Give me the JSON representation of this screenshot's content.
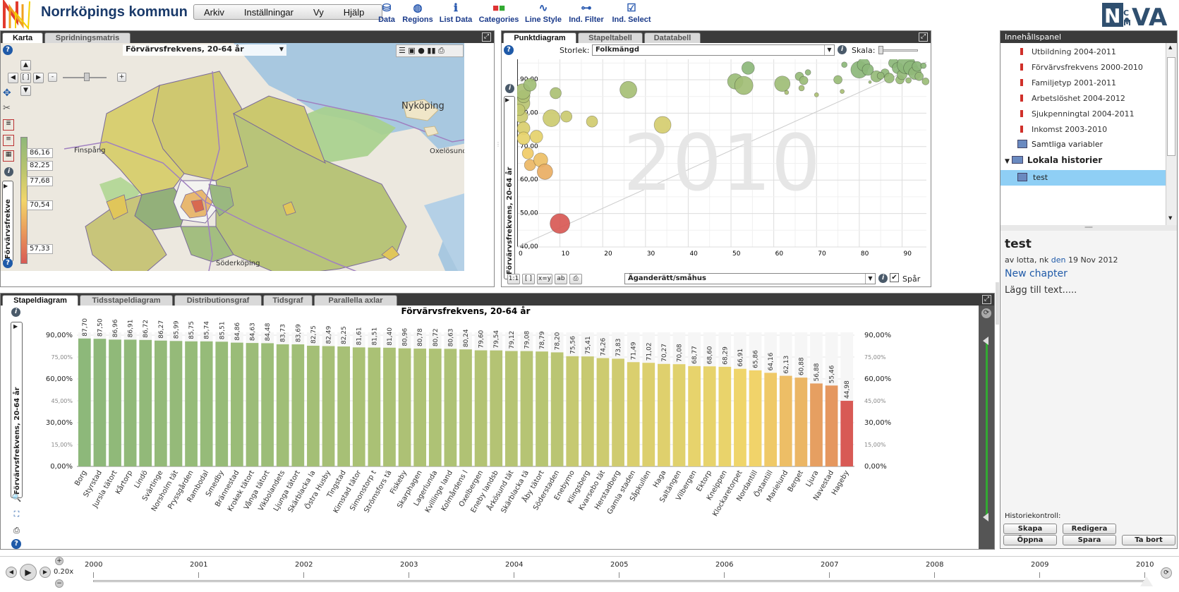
{
  "app": {
    "title": "Norrköpings kommun",
    "menu": [
      "Arkiv",
      "Inställningar",
      "Vy",
      "Hjälp"
    ],
    "toolbar": [
      {
        "label": "Data",
        "icon": "database-icon"
      },
      {
        "label": "Regions",
        "icon": "globe-icon"
      },
      {
        "label": "List Data",
        "icon": "info-icon"
      },
      {
        "label": "Categories",
        "icon": "categories-icon"
      },
      {
        "label": "Line Style",
        "icon": "line-style-icon"
      },
      {
        "label": "Ind. Filter",
        "icon": "filter-icon"
      },
      {
        "label": "Ind. Select",
        "icon": "checkbox-icon"
      }
    ]
  },
  "map_panel": {
    "tabs": [
      "Karta",
      "Spridningsmatris"
    ],
    "indicator": "Förvärvsfrekvens, 20-64 år",
    "side_label": "Förvärvsfrekve",
    "legend": [
      "86,16",
      "82,25",
      "77,68",
      "70,54",
      "57,33"
    ],
    "places": [
      "Nyköping",
      "Finspång",
      "Oxelösund",
      "Söderköping"
    ],
    "zoom_minus": "-",
    "zoom_plus": "+"
  },
  "scatter_panel": {
    "tabs": [
      "Punktdiagram",
      "Stapeltabell",
      "Datatabell"
    ],
    "size_label": "Storlek:",
    "size_value": "Folkmängd",
    "scale_label": "Skala:",
    "year_watermark": "2010",
    "y_label": "Förvärvsfrekvens, 20-64 år",
    "x_axis_value": "Äganderätt/småhus",
    "trace_label": "Spår",
    "bottom_buttons": [
      "1:1",
      "[ ]",
      "x=y",
      "ab"
    ]
  },
  "bar_panel": {
    "tabs": [
      "Stapeldiagram",
      "Tidsstapeldiagram",
      "Distributionsgraf",
      "Tidsgraf",
      "Parallella axlar"
    ],
    "side_label": "Förvärvsfrekvens, 20-64 år"
  },
  "content_panel": {
    "title": "Innehållspanel",
    "items": [
      "Utbildning 2004-2011",
      "Förvärvsfrekvens 2000-2010",
      "Familjetyp 2001-2011",
      "Arbetslöshet 2004-2012",
      "Sjukpenningtal 2004-2011",
      "Inkomst 2003-2010"
    ],
    "all_variables": "Samtliga variabler",
    "local_histories": "Lokala historier",
    "selected_story": "test",
    "story_title": "test",
    "story_meta_prefix": "av lotta, nk",
    "story_meta_den": "den",
    "story_meta_date": "19 Nov 2012",
    "new_chapter": "New chapter",
    "add_text": "Lägg till text.....",
    "history_control": "Historiekontroll:",
    "buttons": [
      "Skapa",
      "Redigera",
      "Öppna",
      "Spara",
      "Ta bort"
    ]
  },
  "timeline": {
    "speed": "0.20x",
    "years": [
      "2000",
      "2001",
      "2002",
      "2003",
      "2004",
      "2005",
      "2006",
      "2007",
      "2008",
      "2009",
      "2010"
    ],
    "current": 2010
  },
  "chart_data": [
    {
      "type": "bar",
      "title": "Förvärvsfrekvens, 20-64 år",
      "ylim": [
        0,
        90
      ],
      "yticks": [
        "0,00%",
        "15,00%",
        "30,00%",
        "45,00%",
        "60,00%",
        "75,00%",
        "90,00%"
      ],
      "categories": [
        "Borg",
        "Styrstad",
        "Jursla tätort",
        "Kårtorp",
        "Lindö",
        "Svärtinge",
        "Norsholm tät",
        "Pryssgården",
        "Rambodal",
        "Smedby",
        "Brännestad",
        "Krokek tätort",
        "Vånga tätort",
        "Vikbolandets",
        "Ljunga tätort",
        "Skärblacka la",
        "Östra Husby",
        "Tingstad",
        "Kimstad tätor",
        "Simonstorp t",
        "Strömsfors tä",
        "Fiskeby",
        "Skarphagen",
        "Lagerlunda",
        "Kvillinge land",
        "Kolmårdens l",
        "Oxelbergen",
        "Eneby landsb",
        "Årkösund tät",
        "Skärblacka tä",
        "Åby tätort",
        "Söderstaden",
        "Enebymo",
        "Klingsberg",
        "Kvarsebo tät",
        "Herstadberg",
        "Gamla staden",
        "Såpkullen",
        "Haga",
        "Saltängen",
        "Vilbergen",
        "Ektorp",
        "Kneippen",
        "Klockaretorpet",
        "Nordantill",
        "Östantill",
        "Marielund",
        "Berget",
        "Ljura",
        "Navestad",
        "Hageby"
      ],
      "values": [
        87.7,
        87.5,
        86.96,
        86.91,
        86.72,
        86.27,
        85.99,
        85.75,
        85.74,
        85.51,
        84.86,
        84.63,
        84.48,
        83.73,
        83.69,
        82.75,
        82.49,
        82.25,
        81.61,
        81.51,
        81.4,
        80.96,
        80.78,
        80.72,
        80.63,
        80.24,
        79.6,
        79.54,
        79.12,
        79.08,
        78.79,
        78.2,
        75.56,
        75.41,
        74.26,
        73.83,
        71.49,
        71.02,
        70.27,
        70.08,
        68.77,
        68.6,
        68.29,
        66.91,
        65.86,
        64.16,
        62.13,
        60.88,
        56.88,
        55.46,
        44.98
      ],
      "labels": [
        "87,70",
        "87,50",
        "86,96",
        "86,91",
        "86,72",
        "86,27",
        "85,99",
        "85,75",
        "85,74",
        "85,51",
        "84,86",
        "84,63",
        "84,48",
        "83,73",
        "83,69",
        "82,75",
        "82,49",
        "82,25",
        "81,61",
        "81,51",
        "81,40",
        "80,96",
        "80,78",
        "80,72",
        "80,63",
        "80,24",
        "79,60",
        "79,54",
        "79,12",
        "79,08",
        "78,79",
        "78,20",
        "75,56",
        "75,41",
        "74,26",
        "73,83",
        "71,49",
        "71,02",
        "70,27",
        "70,08",
        "68,77",
        "68,60",
        "68,29",
        "66,91",
        "65,86",
        "64,16",
        "62,13",
        "60,88",
        "56,88",
        "55,46",
        "44,98"
      ]
    },
    {
      "type": "scatter",
      "xlabel": "Äganderätt/småhus",
      "ylabel": "Förvärvsfrekvens, 20-64 år",
      "xlim": [
        0,
        100
      ],
      "ylim": [
        40,
        95
      ],
      "xticks": [
        "0",
        "10",
        "20",
        "30",
        "40",
        "50",
        "60",
        "70",
        "80",
        "90"
      ],
      "yticks": [
        "40,00",
        "50,00",
        "60,00",
        "70,00",
        "80,00",
        "90,00"
      ],
      "points": [
        {
          "x": 1,
          "y": 83,
          "s": 12
        },
        {
          "x": 1,
          "y": 79,
          "s": 9
        },
        {
          "x": 1.5,
          "y": 75.5,
          "s": 9
        },
        {
          "x": 1.5,
          "y": 72.5,
          "s": 9
        },
        {
          "x": 2.5,
          "y": 68,
          "s": 8
        },
        {
          "x": 3,
          "y": 64.5,
          "s": 8
        },
        {
          "x": 5.5,
          "y": 66,
          "s": 10
        },
        {
          "x": 4.5,
          "y": 73,
          "s": 9
        },
        {
          "x": 1.5,
          "y": 85,
          "s": 9
        },
        {
          "x": 1.3,
          "y": 86.5,
          "s": 11
        },
        {
          "x": 3,
          "y": 88.5,
          "s": 9
        },
        {
          "x": 0.5,
          "y": 81,
          "s": 8
        },
        {
          "x": 8,
          "y": 78.5,
          "s": 12
        },
        {
          "x": 9,
          "y": 86,
          "s": 8
        },
        {
          "x": 11.5,
          "y": 79,
          "s": 8
        },
        {
          "x": 17.5,
          "y": 77.5,
          "s": 8
        },
        {
          "x": 26,
          "y": 87,
          "s": 12
        },
        {
          "x": 34,
          "y": 76.5,
          "s": 12
        },
        {
          "x": 6.5,
          "y": 62.5,
          "s": 11
        },
        {
          "x": 10,
          "y": 47,
          "s": 14
        },
        {
          "x": 51,
          "y": 89.5,
          "s": 11
        },
        {
          "x": 53,
          "y": 88.3,
          "s": 13
        },
        {
          "x": 54,
          "y": 93.5,
          "s": 9
        },
        {
          "x": 62,
          "y": 88.8,
          "s": 11
        },
        {
          "x": 66,
          "y": 91,
          "s": 6
        },
        {
          "x": 67,
          "y": 89.8,
          "s": 6
        },
        {
          "x": 66.5,
          "y": 87.5,
          "s": 4
        },
        {
          "x": 68,
          "y": 92.2,
          "s": 4
        },
        {
          "x": 75,
          "y": 90,
          "s": 6
        },
        {
          "x": 76,
          "y": 86.5,
          "s": 3
        },
        {
          "x": 76.5,
          "y": 94.5,
          "s": 4
        },
        {
          "x": 80,
          "y": 93,
          "s": 12
        },
        {
          "x": 81,
          "y": 94.5,
          "s": 9
        },
        {
          "x": 82,
          "y": 93,
          "s": 8
        },
        {
          "x": 82.5,
          "y": 89.3,
          "s": 2
        },
        {
          "x": 84,
          "y": 91,
          "s": 8
        },
        {
          "x": 86,
          "y": 92,
          "s": 6
        },
        {
          "x": 87,
          "y": 90.5,
          "s": 7
        },
        {
          "x": 88,
          "y": 95,
          "s": 7
        },
        {
          "x": 89,
          "y": 93.5,
          "s": 8
        },
        {
          "x": 89.5,
          "y": 90,
          "s": 6
        },
        {
          "x": 90,
          "y": 91.5,
          "s": 7
        },
        {
          "x": 91,
          "y": 94.5,
          "s": 13
        },
        {
          "x": 92,
          "y": 93.5,
          "s": 10
        },
        {
          "x": 93,
          "y": 92,
          "s": 9
        },
        {
          "x": 93.5,
          "y": 94,
          "s": 7
        },
        {
          "x": 94,
          "y": 91,
          "s": 6
        },
        {
          "x": 95,
          "y": 94.2,
          "s": 4
        },
        {
          "x": 95.5,
          "y": 89.5,
          "s": 5
        },
        {
          "x": 91.5,
          "y": 89.8,
          "s": 4
        },
        {
          "x": 63,
          "y": 86.2,
          "s": 3
        },
        {
          "x": 70,
          "y": 85.5,
          "s": 3
        },
        {
          "x": 85,
          "y": 91.2,
          "s": 5
        }
      ]
    }
  ],
  "colors": {
    "high": "#8db87a",
    "mid": "#f2d66a",
    "low": "#d85a55"
  }
}
